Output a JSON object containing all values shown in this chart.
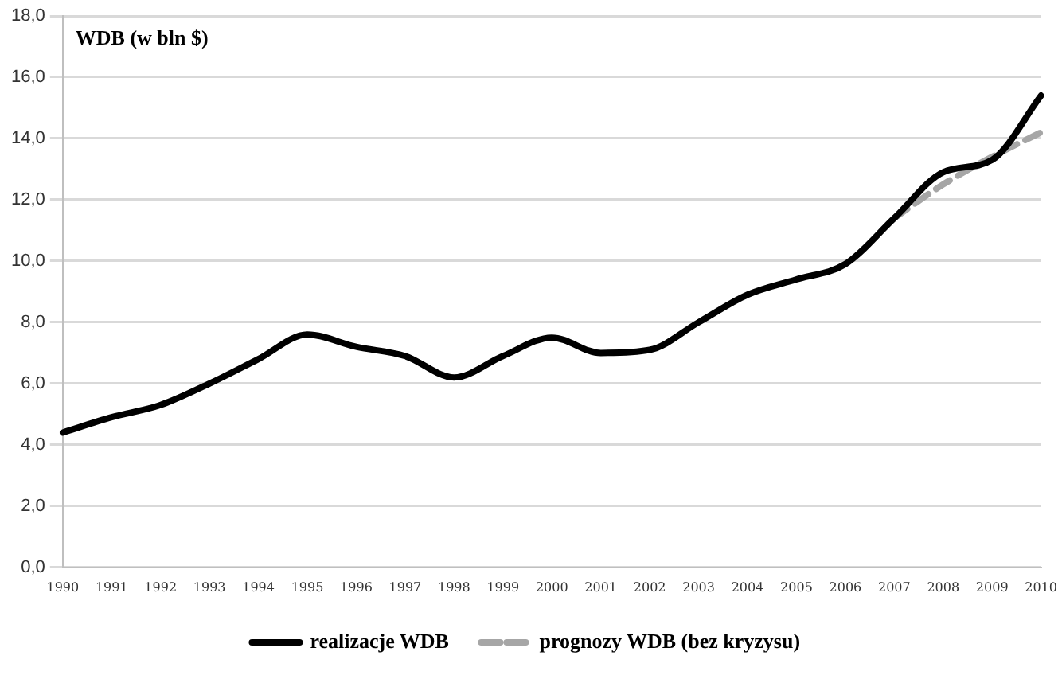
{
  "chart_data": {
    "type": "line",
    "title": "WDB (w bln $)",
    "categories": [
      "1990",
      "1991",
      "1992",
      "1993",
      "1994",
      "1995",
      "1996",
      "1997",
      "1998",
      "1999",
      "2000",
      "2001",
      "2002",
      "2003",
      "2004",
      "2005",
      "2006",
      "2007",
      "2008",
      "2009",
      "2010"
    ],
    "series": [
      {
        "name": "realizacje WDB",
        "color": "#000000",
        "line_style": "solid",
        "values": [
          4.4,
          4.9,
          5.3,
          6.0,
          6.8,
          7.6,
          7.2,
          6.9,
          6.2,
          6.9,
          7.5,
          7.0,
          7.1,
          8.0,
          8.9,
          9.4,
          9.9,
          11.4,
          12.9,
          13.3,
          15.4
        ]
      },
      {
        "name": "prognozy WDB (bez kryzysu)",
        "color": "#a6a6a6",
        "line_style": "dashed",
        "values": [
          null,
          null,
          null,
          null,
          null,
          null,
          null,
          null,
          null,
          null,
          null,
          null,
          null,
          null,
          null,
          null,
          null,
          11.4,
          12.5,
          13.4,
          14.2
        ]
      }
    ],
    "ylim": [
      0,
      18
    ],
    "yticks": [
      {
        "value": 0,
        "label": "0,0"
      },
      {
        "value": 2,
        "label": "2,0"
      },
      {
        "value": 4,
        "label": "4,0"
      },
      {
        "value": 6,
        "label": "6,0"
      },
      {
        "value": 8,
        "label": "8,0"
      },
      {
        "value": 10,
        "label": "10,0"
      },
      {
        "value": 12,
        "label": "12,0"
      },
      {
        "value": 14,
        "label": "14,0"
      },
      {
        "value": 16,
        "label": "16,0"
      },
      {
        "value": 18,
        "label": "18,0"
      }
    ],
    "grid": "y",
    "legend": "bottom",
    "marker": "none"
  }
}
